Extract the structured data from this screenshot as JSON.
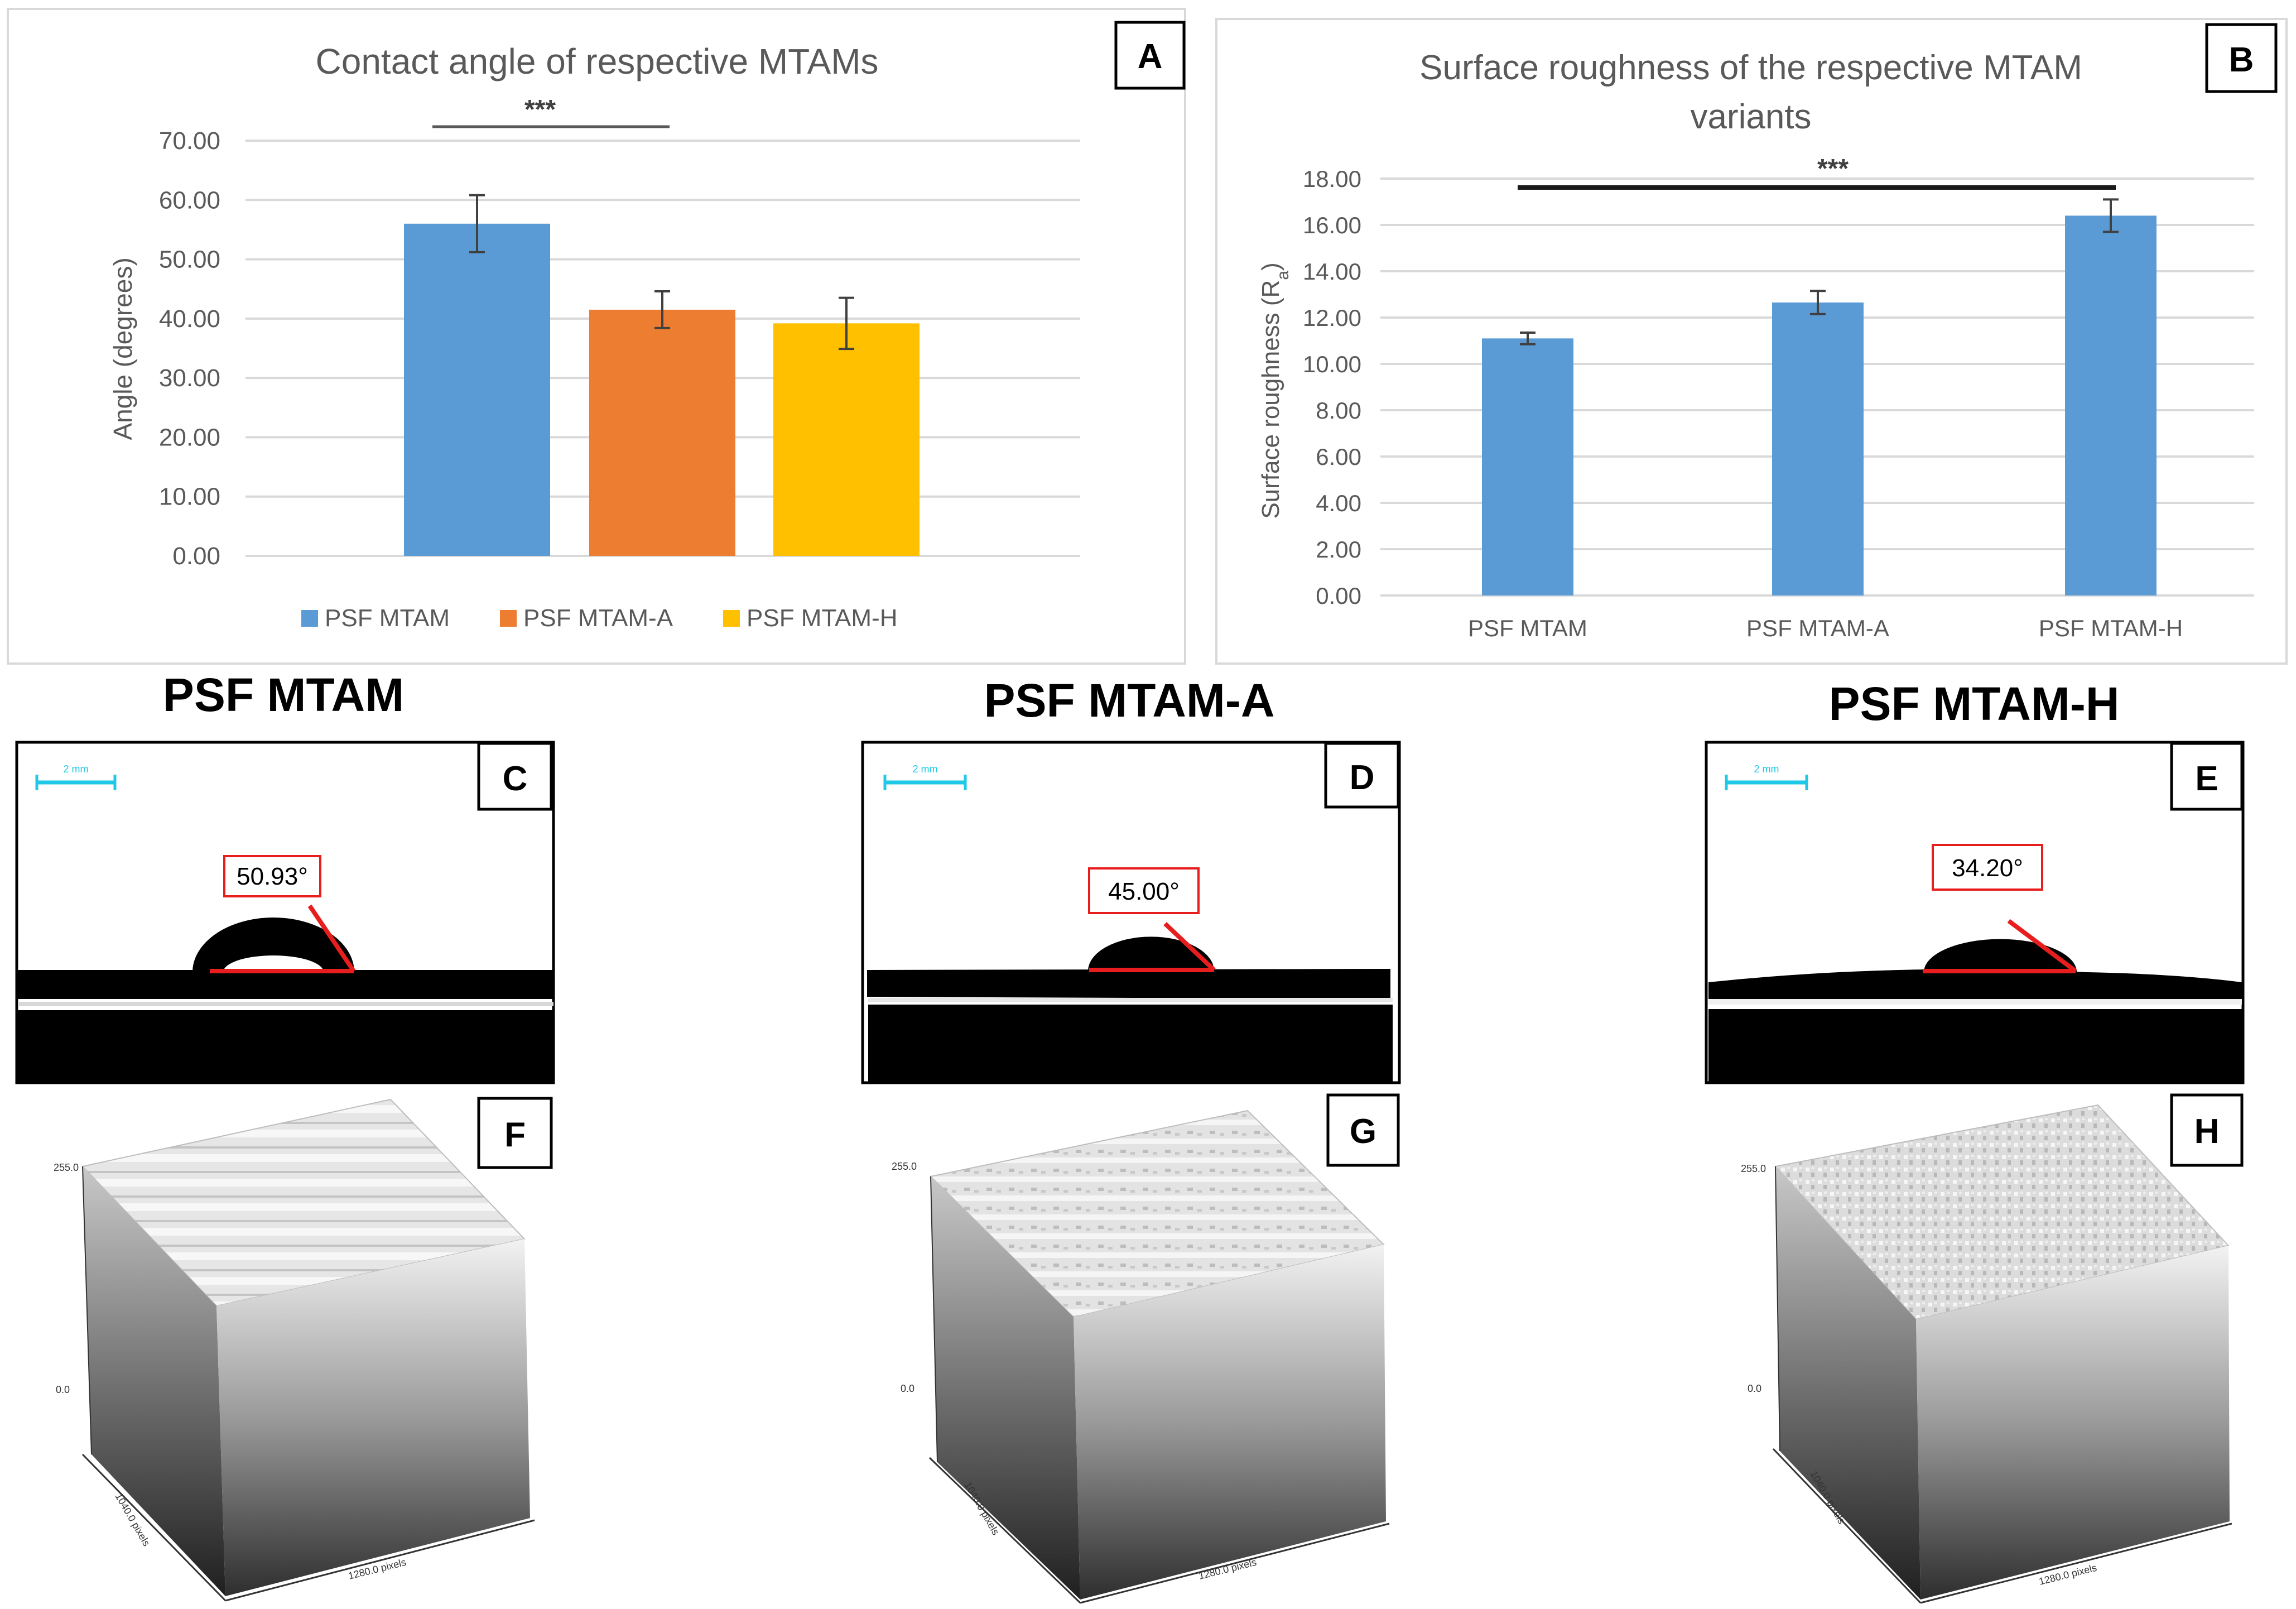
{
  "figure": {
    "panels": {
      "a": "A",
      "b": "B",
      "c": "C",
      "d": "D",
      "e": "E",
      "f": "F",
      "g": "G",
      "h": "H"
    },
    "section_titles": [
      "PSF MTAM",
      "PSF MTAM-A",
      "PSF MTAM-H"
    ],
    "angle_labels": [
      "50.93°",
      "45.00°",
      "34.20°"
    ],
    "contact_angles_deg": [
      50.93,
      45.0,
      34.2
    ],
    "scale_bar_label": "2 mm",
    "surface_plot": {
      "z_max_label": "255.0",
      "z_min_label": "0.0",
      "y_axis_label": "1040.0 pixels",
      "x_axis_label": "1280.0 pixels"
    }
  },
  "chart_data": [
    {
      "type": "bar",
      "title": "Contact angle of respective MTAMs",
      "xlabel": "",
      "ylabel": "Angle (degrees)",
      "ylim": [
        0,
        70
      ],
      "yticks": [
        "0.00",
        "10.00",
        "20.00",
        "30.00",
        "40.00",
        "50.00",
        "60.00",
        "70.00"
      ],
      "categories": [
        "PSF MTAM",
        "PSF MTAM-A",
        "PSF MTAM-H"
      ],
      "values": [
        56.0,
        41.5,
        39.2
      ],
      "errors": [
        4.8,
        3.1,
        4.3
      ],
      "colors": [
        "#5b9bd5",
        "#ed7d31",
        "#ffc000"
      ],
      "legend": [
        "PSF MTAM",
        "PSF MTAM-A",
        "PSF MTAM-H"
      ],
      "legend_position": "bottom",
      "significance": "***",
      "grid": true
    },
    {
      "type": "bar",
      "title": "Surface roughness of the respective MTAM variants",
      "title_lines": [
        "Surface roughness of the respective MTAM",
        "variants"
      ],
      "xlabel": "",
      "ylabel": "Surface roughness (Ra)",
      "ylabel_main": "Surface roughness (R",
      "ylabel_sub": "a",
      "ylabel_end": ")",
      "ylim": [
        0,
        18
      ],
      "yticks": [
        "0.00",
        "2.00",
        "4.00",
        "6.00",
        "8.00",
        "10.00",
        "12.00",
        "14.00",
        "16.00",
        "18.00"
      ],
      "categories": [
        "PSF MTAM",
        "PSF MTAM-A",
        "PSF MTAM-H"
      ],
      "values": [
        11.1,
        12.65,
        16.4
      ],
      "errors": [
        0.25,
        0.5,
        0.7
      ],
      "colors": [
        "#5b9bd5"
      ],
      "significance": "***",
      "grid": true
    }
  ]
}
